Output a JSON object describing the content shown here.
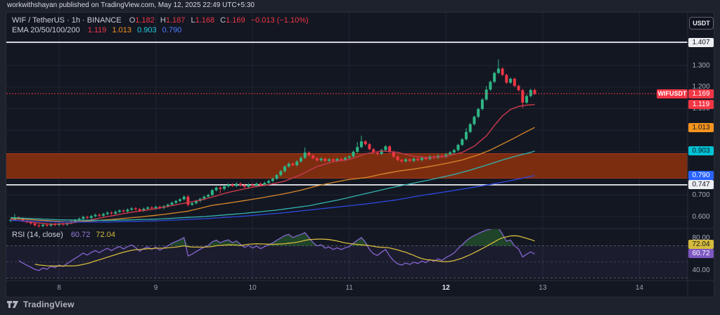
{
  "attribution": {
    "text": "workwithshayan published on TradingView.com, May 12, 2025 22:49 UTC+5:30"
  },
  "toolbar": {
    "currency_button": "USDT"
  },
  "footer": {
    "brand": "TradingView"
  },
  "legend": {
    "symbol_row": {
      "title": "WIF / TetherUS · 1h · BINANCE",
      "o_label": "O",
      "o_value": "1.182",
      "h_label": "H",
      "h_value": "1.187",
      "l_label": "L",
      "l_value": "1.168",
      "c_label": "C",
      "c_value": "1.169",
      "change": "−0.013 (−1.10%)"
    },
    "ema_row": {
      "title": "EMA 20/50/100/200",
      "values": [
        "1.119",
        "1.013",
        "0.903",
        "0.790"
      ]
    },
    "rsi_row": {
      "title": "RSI (14, close)",
      "value": "60.72",
      "ma_value": "72.04"
    }
  },
  "colors": {
    "background_outer": "#1e222d",
    "background_chart": "#131722",
    "grid": "#1f2633",
    "border": "#2a2e39",
    "candle_up": "#2fb484",
    "candle_down": "#f23645",
    "ohlc_text": "#f23645",
    "zone_fill": "#7c2d10",
    "zone_edge": "#a83a1d",
    "level_line": "#eceef2",
    "current_line": "#f23645",
    "rsi_line": "#8465ce",
    "rsi_ma_line": "#d3ba3c",
    "rsi_band_fill": "rgba(126,87,194,0.09)",
    "rsi_overbought_fill": "rgba(46,125,50,0.45)"
  },
  "chart_data": {
    "type": "candlestick+indicators",
    "symbol": "WIF/TetherUS",
    "exchange": "BINANCE",
    "interval": "1h",
    "last_candle": {
      "open": 1.182,
      "high": 1.187,
      "low": 1.168,
      "close": 1.169,
      "change": -0.013,
      "change_pct": -1.1
    },
    "price_axis": {
      "ticks": [
        {
          "text": "1.300",
          "price": 1.3
        },
        {
          "text": "1.200",
          "price": 1.2
        },
        {
          "text": "1.100",
          "price": 1.1
        },
        {
          "text": "0.700",
          "price": 0.7
        },
        {
          "text": "0.600",
          "price": 0.6
        }
      ],
      "chips": [
        {
          "text": "1.407",
          "price": 1.407,
          "bg": "#eceef2",
          "fg": "#131722"
        },
        {
          "text": "1.169",
          "price": 1.169,
          "bg": "#f23645",
          "fg": "#ffffff",
          "tag": "WIFUSDT"
        },
        {
          "text": "1.119",
          "price": 1.119,
          "bg": "#f23645",
          "fg": "#ffffff"
        },
        {
          "text": "1.013",
          "price": 1.013,
          "bg": "#f7941e",
          "fg": "#131722"
        },
        {
          "text": "0.903",
          "price": 0.903,
          "bg": "#00c2d4",
          "fg": "#131722"
        },
        {
          "text": "0.790",
          "price": 0.79,
          "bg": "#2962ff",
          "fg": "#ffffff"
        },
        {
          "text": "0.747",
          "price": 0.747,
          "bg": "#eceef2",
          "fg": "#131722"
        }
      ],
      "grid_prices": [
        0.6,
        0.7,
        0.8,
        0.9,
        1.0,
        1.1,
        1.2,
        1.3,
        1.4
      ]
    },
    "levels": [
      {
        "price": 1.407
      },
      {
        "price": 0.747
      }
    ],
    "current_price": 1.169,
    "zone": {
      "top": 0.8915,
      "bottom": 0.778
    },
    "candles": {
      "first_open": 0.58,
      "default_wick": 0.006,
      "closes": [
        0.585,
        0.596,
        0.59,
        0.582,
        0.575,
        0.568,
        0.56,
        0.556,
        0.562,
        0.558,
        0.565,
        0.561,
        0.567,
        0.563,
        0.57,
        0.576,
        0.583,
        0.59,
        0.598,
        0.594,
        0.602,
        0.608,
        0.604,
        0.612,
        0.618,
        0.614,
        0.622,
        0.628,
        0.624,
        0.632,
        0.638,
        0.634,
        0.628,
        0.636,
        0.642,
        0.638,
        0.645,
        0.64,
        0.648,
        0.655,
        0.664,
        0.672,
        0.68,
        0.692,
        0.655,
        0.662,
        0.672,
        0.682,
        0.692,
        0.7,
        0.722,
        0.734,
        0.728,
        0.74,
        0.748,
        0.742,
        0.752,
        0.745,
        0.738,
        0.748,
        0.742,
        0.752,
        0.746,
        0.756,
        0.765,
        0.775,
        0.792,
        0.81,
        0.832,
        0.845,
        0.838,
        0.855,
        0.872,
        0.896,
        0.883,
        0.87,
        0.86,
        0.868,
        0.858,
        0.865,
        0.858,
        0.867,
        0.862,
        0.872,
        0.878,
        0.9,
        0.922,
        0.948,
        0.935,
        0.912,
        0.896,
        0.89,
        0.908,
        0.925,
        0.9,
        0.878,
        0.862,
        0.856,
        0.865,
        0.858,
        0.868,
        0.862,
        0.872,
        0.866,
        0.878,
        0.872,
        0.882,
        0.876,
        0.888,
        0.897,
        0.908,
        0.932,
        0.958,
        0.992,
        1.028,
        1.062,
        1.098,
        1.142,
        1.188,
        1.224,
        1.265,
        1.285,
        1.256,
        1.22,
        1.238,
        1.205,
        1.185,
        1.128,
        1.158,
        1.186,
        1.169
      ],
      "high_overrides": {
        "1": 0.612,
        "44": 0.7,
        "73": 0.92,
        "86": 0.945,
        "87": 0.975,
        "113": 1.01,
        "118": 1.205,
        "121": 1.327
      },
      "low_overrides": {
        "7": 0.549,
        "44": 0.646,
        "52": 0.708,
        "97": 0.848,
        "127": 1.102
      }
    },
    "emas": {
      "periods": [
        20,
        50,
        100,
        200
      ],
      "last_values": [
        1.119,
        1.013,
        0.903,
        0.79
      ],
      "line_colors": [
        "#c0394a",
        "#d9892b",
        "#33b3b0",
        "#2e49e0"
      ],
      "label_colors": [
        "#f23645",
        "#f7941e",
        "#22cde0",
        "#4a7dff"
      ],
      "paths": [
        [
          [
            0,
            0.586
          ],
          [
            6,
            0.572
          ],
          [
            10,
            0.565
          ],
          [
            14,
            0.567
          ],
          [
            18,
            0.578
          ],
          [
            24,
            0.6
          ],
          [
            30,
            0.62
          ],
          [
            36,
            0.636
          ],
          [
            42,
            0.658
          ],
          [
            48,
            0.68
          ],
          [
            54,
            0.712
          ],
          [
            60,
            0.736
          ],
          [
            64,
            0.748
          ],
          [
            68,
            0.764
          ],
          [
            72,
            0.794
          ],
          [
            76,
            0.832
          ],
          [
            80,
            0.854
          ],
          [
            84,
            0.864
          ],
          [
            88,
            0.89
          ],
          [
            92,
            0.904
          ],
          [
            96,
            0.897
          ],
          [
            100,
            0.879
          ],
          [
            104,
            0.872
          ],
          [
            108,
            0.879
          ],
          [
            112,
            0.897
          ],
          [
            115,
            0.926
          ],
          [
            118,
            0.973
          ],
          [
            120,
            1.022
          ],
          [
            122,
            1.066
          ],
          [
            124,
            1.096
          ],
          [
            126,
            1.11
          ],
          [
            128,
            1.116
          ],
          [
            130,
            1.119
          ]
        ],
        [
          [
            0,
            0.592
          ],
          [
            8,
            0.582
          ],
          [
            14,
            0.576
          ],
          [
            20,
            0.58
          ],
          [
            26,
            0.588
          ],
          [
            32,
            0.598
          ],
          [
            38,
            0.61
          ],
          [
            44,
            0.625
          ],
          [
            50,
            0.652
          ],
          [
            56,
            0.668
          ],
          [
            62,
            0.686
          ],
          [
            68,
            0.706
          ],
          [
            72,
            0.722
          ],
          [
            76,
            0.742
          ],
          [
            80,
            0.758
          ],
          [
            84,
            0.772
          ],
          [
            88,
            0.78
          ],
          [
            92,
            0.796
          ],
          [
            96,
            0.81
          ],
          [
            100,
            0.82
          ],
          [
            104,
            0.832
          ],
          [
            108,
            0.846
          ],
          [
            112,
            0.862
          ],
          [
            116,
            0.886
          ],
          [
            119,
            0.908
          ],
          [
            122,
            0.936
          ],
          [
            125,
            0.964
          ],
          [
            127,
            0.984
          ],
          [
            129,
            1.003
          ],
          [
            130,
            1.013
          ]
        ],
        [
          [
            0,
            0.595
          ],
          [
            12,
            0.585
          ],
          [
            24,
            0.582
          ],
          [
            36,
            0.588
          ],
          [
            48,
            0.6
          ],
          [
            58,
            0.615
          ],
          [
            66,
            0.63
          ],
          [
            74,
            0.65
          ],
          [
            82,
            0.68
          ],
          [
            88,
            0.706
          ],
          [
            94,
            0.732
          ],
          [
            100,
            0.755
          ],
          [
            106,
            0.778
          ],
          [
            110,
            0.795
          ],
          [
            114,
            0.815
          ],
          [
            118,
            0.838
          ],
          [
            122,
            0.862
          ],
          [
            125,
            0.878
          ],
          [
            127,
            0.888
          ],
          [
            129,
            0.897
          ],
          [
            130,
            0.903
          ]
        ],
        [
          [
            0,
            0.582
          ],
          [
            12,
            0.575
          ],
          [
            24,
            0.575
          ],
          [
            36,
            0.58
          ],
          [
            48,
            0.59
          ],
          [
            58,
            0.602
          ],
          [
            68,
            0.618
          ],
          [
            78,
            0.638
          ],
          [
            88,
            0.658
          ],
          [
            96,
            0.678
          ],
          [
            102,
            0.698
          ],
          [
            108,
            0.715
          ],
          [
            114,
            0.733
          ],
          [
            120,
            0.752
          ],
          [
            125,
            0.77
          ],
          [
            128,
            0.782
          ],
          [
            130,
            0.79
          ]
        ]
      ]
    },
    "rsi": {
      "period": 14,
      "last_value": 60.72,
      "ma_last_value": 72.04,
      "dashed_levels": [
        70,
        50,
        30
      ],
      "band": [
        30,
        70
      ],
      "axis_ticks": [
        {
          "text": "80.00",
          "value": 80
        },
        {
          "text": "40.00",
          "value": 40
        }
      ],
      "chips": [
        {
          "text": "72.04",
          "value": 72.04,
          "bg": "#d3ba3c",
          "fg": "#131722"
        },
        {
          "text": "60.72",
          "value": 60.72,
          "bg": "#7e57c2",
          "fg": "#ffffff"
        }
      ]
    },
    "time_axis": {
      "labels": [
        "8",
        "9",
        "10",
        "11",
        "12",
        "13",
        "14"
      ],
      "emphasized": "12"
    }
  }
}
